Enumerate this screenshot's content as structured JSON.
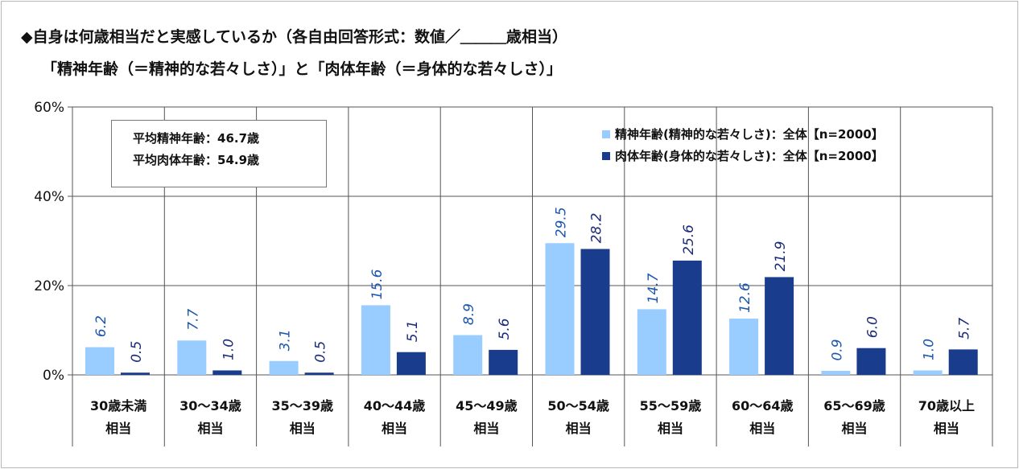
{
  "title": {
    "line1": "◆自身は何歳相当だと実感しているか（各自由回答形式：数値／＿＿＿歳相当）",
    "line2": "「精神年齢（＝精神的な若々しさ）」と「肉体年齢（＝身体的な若々しさ）」"
  },
  "stats": {
    "mental_avg": "平均精神年齢：46.7歳",
    "physical_avg": "平均肉体年齢：54.9歳"
  },
  "colors": {
    "mental": "#99ccff",
    "physical": "#1a3c8c",
    "mental_label": "#1a56b0",
    "physical_label": "#1a2a7a",
    "grid": "#555555"
  },
  "chart_data": {
    "type": "bar",
    "categories": [
      [
        "30歳未満",
        "相当"
      ],
      [
        "30～34歳",
        "相当"
      ],
      [
        "35～39歳",
        "相当"
      ],
      [
        "40～44歳",
        "相当"
      ],
      [
        "45～49歳",
        "相当"
      ],
      [
        "50～54歳",
        "相当"
      ],
      [
        "55～59歳",
        "相当"
      ],
      [
        "60～64歳",
        "相当"
      ],
      [
        "65～69歳",
        "相当"
      ],
      [
        "70歳以上",
        "相当"
      ]
    ],
    "series": [
      {
        "name": "精神年齢(精神的な若々しさ)：全体【n=2000】",
        "values": [
          6.2,
          7.7,
          3.1,
          15.6,
          8.9,
          29.5,
          14.7,
          12.6,
          0.9,
          1.0
        ]
      },
      {
        "name": "肉体年齢(身体的な若々しさ)：全体【n=2000】",
        "values": [
          0.5,
          1.0,
          0.5,
          5.1,
          5.6,
          28.2,
          25.6,
          21.9,
          6.0,
          5.7
        ]
      }
    ],
    "yticks": [
      "0%",
      "20%",
      "40%",
      "60%"
    ],
    "ylim": [
      0,
      60
    ],
    "legend": "top-right",
    "grid": true
  }
}
